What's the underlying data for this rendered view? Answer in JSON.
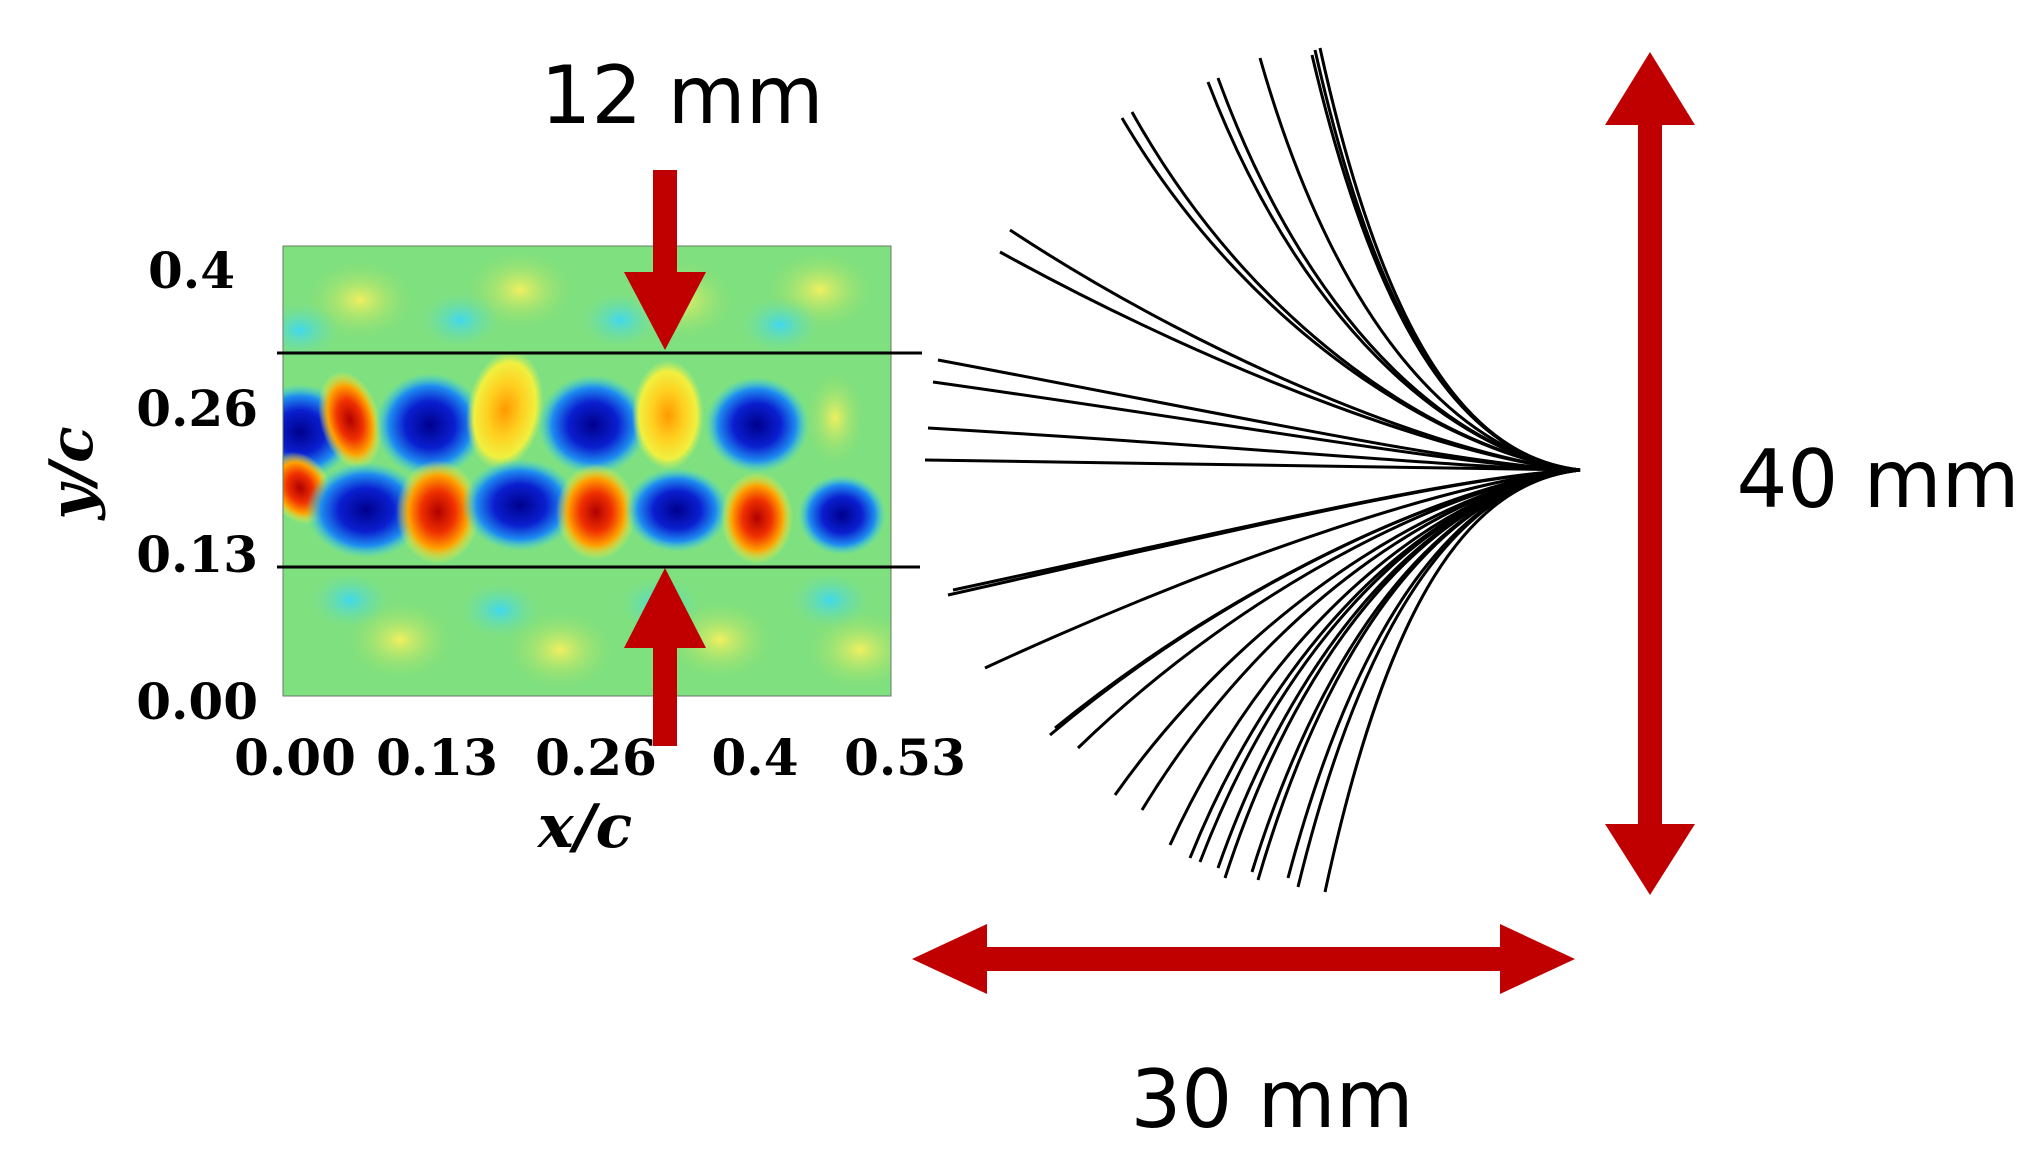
{
  "annotations": {
    "wake_width": "12 mm",
    "fan_height": "40 mm",
    "fan_width": "30 mm"
  },
  "plot": {
    "x_label": "x/c",
    "y_label": "y/c",
    "x_ticks": [
      "0.00",
      "0.13",
      "0.26",
      "0.4",
      "0.53"
    ],
    "y_ticks": [
      "0.00",
      "0.13",
      "0.26",
      "0.4"
    ]
  },
  "colors": {
    "arrow": "#c00000",
    "field_background": "#7fe07f",
    "vortex_negative": "#0a1fd0",
    "vortex_positive": "#e02000",
    "guide_line": "#000000"
  }
}
